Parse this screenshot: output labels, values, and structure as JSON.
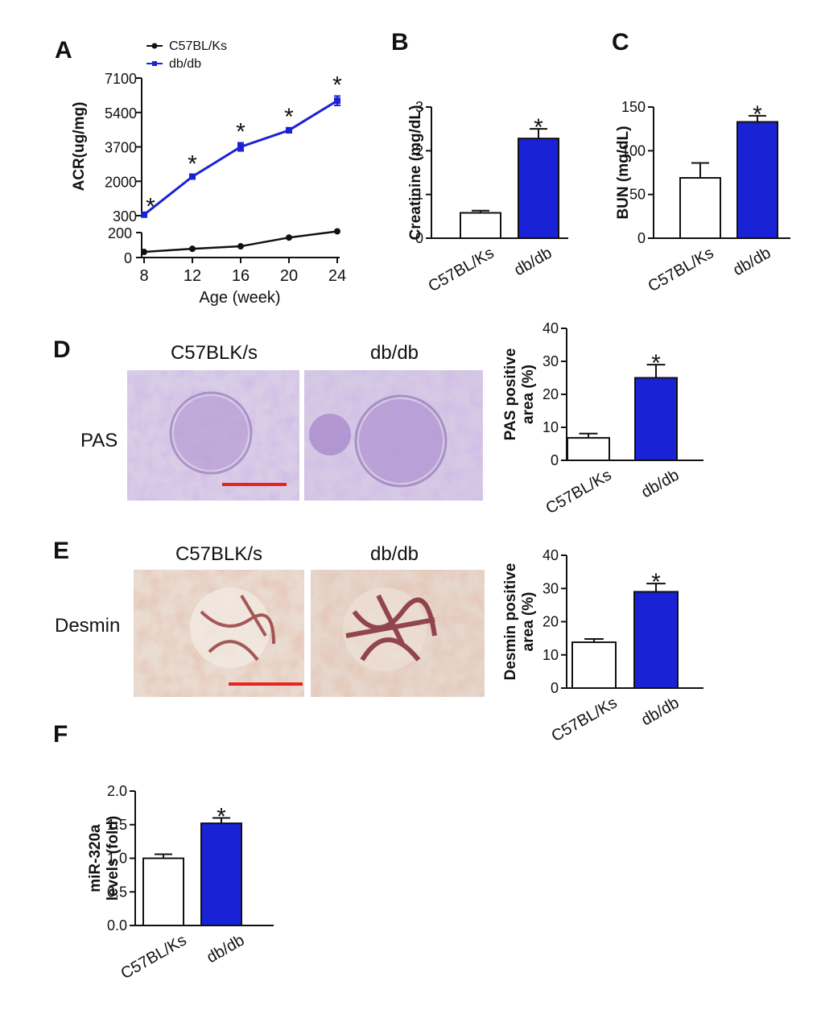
{
  "panels": {
    "A": "A",
    "B": "B",
    "C": "C",
    "D": "D",
    "E": "E",
    "F": "F"
  },
  "colors": {
    "control": "#111111",
    "dbdb": "#1a22d6",
    "control_bar": "#ffffff",
    "scale_bar": "#e8221e"
  },
  "star": "*",
  "micrographs": {
    "D": {
      "row_label": "PAS",
      "col_labels": [
        "C57BLK/s",
        "db/db"
      ],
      "stain": "pas"
    },
    "E": {
      "row_label": "Desmin",
      "col_labels": [
        "C57BLK/s",
        "db/db"
      ],
      "stain": "desmin"
    }
  },
  "chart_data": [
    {
      "id": "A",
      "type": "line",
      "title": "",
      "xlabel": "Age (week)",
      "ylabel": "ACR(ug/mg)",
      "x": [
        8,
        12,
        16,
        20,
        24
      ],
      "xticks": [
        "8",
        "12",
        "16",
        "20",
        "24"
      ],
      "upper_axis": {
        "ylim": [
          300,
          7100
        ],
        "yticks": [
          300,
          2000,
          3700,
          5400,
          7100
        ]
      },
      "lower_axis": {
        "ylim": [
          0,
          200
        ],
        "yticks": [
          0,
          200
        ]
      },
      "legend": {
        "placement": "top",
        "entries": [
          "C57BL/Ks",
          "db/db"
        ]
      },
      "series": [
        {
          "name": "C57BL/Ks",
          "values": [
            45,
            70,
            90,
            160,
            210
          ],
          "errors": [
            0,
            0,
            0,
            0,
            0
          ]
        },
        {
          "name": "db/db",
          "values": [
            350,
            2230,
            3700,
            4520,
            5980
          ],
          "errors": [
            0,
            80,
            200,
            120,
            230
          ]
        }
      ],
      "significance": [
        "*",
        "*",
        "*",
        "*",
        "*"
      ]
    },
    {
      "id": "B",
      "type": "bar",
      "ylabel": "Creatinine (mg/dL)",
      "categories": [
        "C57BL/Ks",
        "db/db"
      ],
      "values": [
        0.58,
        2.28
      ],
      "errors": [
        0.05,
        0.22
      ],
      "ylim": [
        0,
        3
      ],
      "yticks": [
        0,
        1,
        2,
        3
      ],
      "significance": [
        "",
        "*"
      ]
    },
    {
      "id": "C",
      "type": "bar",
      "ylabel": "BUN (mg/dL)",
      "categories": [
        "C57BL/Ks",
        "db/db"
      ],
      "values": [
        69,
        133
      ],
      "errors": [
        17,
        7
      ],
      "ylim": [
        0,
        150
      ],
      "yticks": [
        0,
        50,
        100,
        150
      ],
      "significance": [
        "",
        "*"
      ]
    },
    {
      "id": "D",
      "type": "bar",
      "ylabel_lines": [
        "PAS positive",
        "area (%)"
      ],
      "categories": [
        "C57BL/Ks",
        "db/db"
      ],
      "values": [
        6.8,
        25
      ],
      "errors": [
        1.3,
        4
      ],
      "ylim": [
        0,
        40
      ],
      "yticks": [
        0,
        10,
        20,
        30,
        40
      ],
      "significance": [
        "",
        "*"
      ]
    },
    {
      "id": "E",
      "type": "bar",
      "ylabel_lines": [
        "Desmin positive",
        "area (%)"
      ],
      "categories": [
        "C57BL/Ks",
        "db/db"
      ],
      "values": [
        13.8,
        29
      ],
      "errors": [
        1,
        2.5
      ],
      "ylim": [
        0,
        40
      ],
      "yticks": [
        0,
        10,
        20,
        30,
        40
      ],
      "significance": [
        "",
        "*"
      ]
    },
    {
      "id": "F",
      "type": "bar",
      "ylabel_lines": [
        "miR-320a",
        "levels (fold)"
      ],
      "categories": [
        "C57BL/Ks",
        "db/db"
      ],
      "values": [
        1.0,
        1.52
      ],
      "errors": [
        0.06,
        0.08
      ],
      "ylim": [
        0,
        2
      ],
      "yticks": [
        "0.0",
        "0.5",
        "1.0",
        "1.5",
        "2.0"
      ],
      "significance": [
        "",
        "*"
      ]
    }
  ]
}
